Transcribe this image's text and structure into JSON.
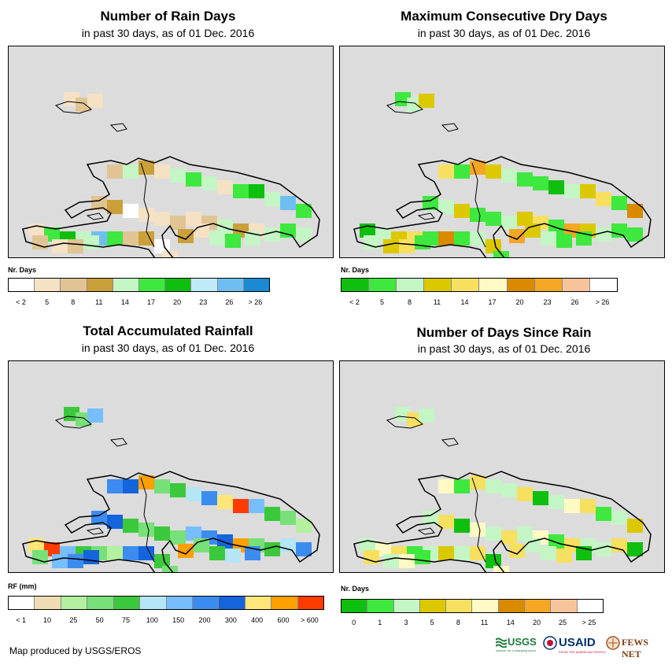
{
  "panels": [
    {
      "title": "Number of Rain Days",
      "subtitle": "in past 30 days, as of 01 Dec. 2016",
      "legend_title": "Nr. Days",
      "legend_labels": [
        "< 2",
        "5",
        "8",
        "11",
        "14",
        "17",
        "20",
        "23",
        "26",
        "> 26"
      ],
      "legend_colors": [
        "#ffffff",
        "#f5e1c4",
        "#e0c493",
        "#c9a03a",
        "#c4f5c4",
        "#3ee83e",
        "#0fbf0f",
        "#bfeaf7",
        "#6fbef2",
        "#1a8ad4"
      ],
      "cells": [
        "#f5e1c4",
        "#e0c493",
        "#f5e1c4",
        "#e0c493",
        "#c4f5c4",
        "#c9a03a",
        "#f5e1c4",
        "#c4f5c4",
        "#3ee83e",
        "#c4f5c4",
        "#f5e1c4",
        "#3ee83e",
        "#0fbf0f",
        "#c4f5c4",
        "#6fbef2",
        "#3ee83e",
        "#e0c493",
        "#c9a03a",
        "#ffffff",
        "#f5e1c4"
      ]
    },
    {
      "title": "Maximum Consecutive Dry Days",
      "subtitle": "in past 30 days, as of 01 Dec. 2016",
      "legend_title": "Nr. Days",
      "legend_labels": [
        "< 2",
        "5",
        "8",
        "11",
        "14",
        "17",
        "20",
        "23",
        "26",
        "> 26"
      ],
      "legend_colors": [
        "#0fbf0f",
        "#3ee83e",
        "#c4f5c4",
        "#dcc800",
        "#f7e060",
        "#fff9c4",
        "#d98a00",
        "#f5a623",
        "#f7c49a",
        "#ffffff"
      ],
      "cells": [
        "#3ee83e",
        "#c4f5c4",
        "#dcc800",
        "#f7e060",
        "#3ee83e",
        "#f5a623",
        "#dcc800",
        "#c4f5c4",
        "#3ee83e",
        "#3ee83e",
        "#0fbf0f",
        "#c4f5c4",
        "#dcc800",
        "#f7e060",
        "#3ee83e",
        "#d98a00",
        "#3ee83e",
        "#c4f5c4",
        "#dcc800",
        "#3ee83e"
      ]
    },
    {
      "title": "Total Accumulated Rainfall",
      "subtitle": "in past 30 days, as of 01 Dec. 2016",
      "legend_title": "RF (mm)",
      "legend_labels": [
        "< 1",
        "10",
        "25",
        "50",
        "75",
        "100",
        "150",
        "200",
        "300",
        "400",
        "600",
        "> 600"
      ],
      "legend_colors": [
        "#ffffff",
        "#f0dcb4",
        "#b4f0a0",
        "#78e078",
        "#3cc83c",
        "#b4e6f5",
        "#78beff",
        "#3c8cf0",
        "#1464dc",
        "#ffe678",
        "#ffa000",
        "#ff3c00"
      ],
      "cells": [
        "#3cc83c",
        "#78e078",
        "#78beff",
        "#3c8cf0",
        "#1464dc",
        "#ffa000",
        "#78e078",
        "#3cc83c",
        "#b4e6f5",
        "#3c8cf0",
        "#ffe678",
        "#ff3c00",
        "#78beff",
        "#3cc83c",
        "#78e078",
        "#b4f0a0",
        "#3c8cf0",
        "#1464dc",
        "#3cc83c",
        "#78e078"
      ]
    },
    {
      "title": "Number of Days Since Rain",
      "subtitle": "in past 30 days, as of 01 Dec. 2016",
      "legend_title": "Nr. Days",
      "legend_labels": [
        "0",
        "1",
        "3",
        "5",
        "8",
        "11",
        "14",
        "20",
        "25",
        "> 25"
      ],
      "legend_colors": [
        "#0fbf0f",
        "#3ee83e",
        "#c4f5c4",
        "#dcc800",
        "#f7e060",
        "#fff9c4",
        "#d98a00",
        "#f5a623",
        "#f7c49a",
        "#ffffff"
      ],
      "cells": [
        "#c4f5c4",
        "#f7e060",
        "#c4f5c4",
        "#fff9c4",
        "#3ee83e",
        "#f7e060",
        "#c4f5c4",
        "#c4f5c4",
        "#f7e060",
        "#0fbf0f",
        "#c4f5c4",
        "#fff9c4",
        "#f7e060",
        "#3ee83e",
        "#c4f5c4",
        "#dcc800",
        "#c4f5c4",
        "#f7e060",
        "#0fbf0f",
        "#fff9c4"
      ]
    }
  ],
  "footer": {
    "credit": "Map produced by USGS/EROS",
    "logo_usgs": "USGS",
    "logo_usgs_tagline": "science for a changing world",
    "logo_usaid": "USAID",
    "logo_usaid_tagline": "FROM THE AMERICAN PEOPLE",
    "logo_fews": "FEWS NET"
  },
  "colors": {
    "map_background": "#dcdcdc",
    "border": "#000000"
  }
}
